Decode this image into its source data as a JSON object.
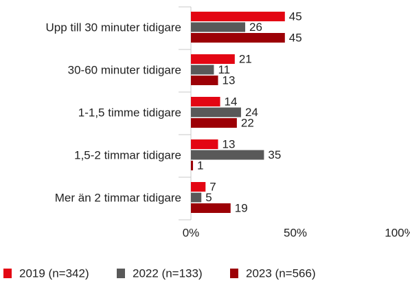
{
  "chart_data": {
    "type": "hbar",
    "categories": [
      "Upp till 30 minuter tidigare",
      "30-60 minuter tidigare",
      "1-1,5 timme tidigare",
      "1,5-2 timmar tidigare",
      "Mer än 2 timmar tidigare"
    ],
    "series": [
      {
        "name": "2019 (n=342)",
        "color": "#e30613",
        "values": [
          45,
          21,
          14,
          13,
          7
        ]
      },
      {
        "name": "2022 (n=133)",
        "color": "#595959",
        "values": [
          26,
          11,
          24,
          35,
          5
        ]
      },
      {
        "name": "2023 (n=566)",
        "color": "#9c0006",
        "values": [
          45,
          13,
          22,
          1,
          19
        ]
      }
    ],
    "xlim": [
      0,
      100
    ],
    "xticks": [
      {
        "value": 0,
        "label": "0%"
      },
      {
        "value": 50,
        "label": "50%"
      },
      {
        "value": 100,
        "label": "100%"
      }
    ],
    "legend": "bottom"
  }
}
